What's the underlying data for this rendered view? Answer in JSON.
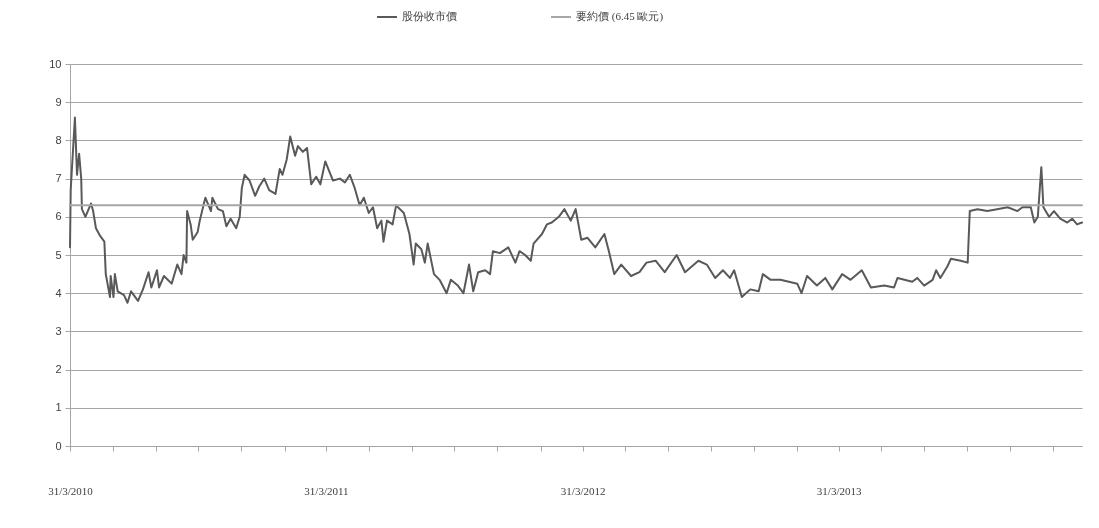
{
  "chart_data": {
    "type": "line",
    "x": [
      "2010-03-31",
      "2010-04-01",
      "2010-04-07",
      "2010-04-10",
      "2010-04-13",
      "2010-04-16",
      "2010-04-17",
      "2010-04-22",
      "2010-04-30",
      "2010-05-03",
      "2010-05-07",
      "2010-05-13",
      "2010-05-19",
      "2010-05-21",
      "2010-05-27",
      "2010-05-28",
      "2010-06-01",
      "2010-06-03",
      "2010-06-07",
      "2010-06-16",
      "2010-06-21",
      "2010-06-26",
      "2010-07-06",
      "2010-07-13",
      "2010-07-21",
      "2010-07-25",
      "2010-08-02",
      "2010-08-05",
      "2010-08-12",
      "2010-08-23",
      "2010-08-31",
      "2010-09-06",
      "2010-09-09",
      "2010-09-13",
      "2010-09-14",
      "2010-09-19",
      "2010-09-22",
      "2010-09-29",
      "2010-10-02",
      "2010-10-10",
      "2010-10-18",
      "2010-10-20",
      "2010-10-28",
      "2010-11-04",
      "2010-11-09",
      "2010-11-15",
      "2010-11-23",
      "2010-11-28",
      "2010-12-01",
      "2010-12-05",
      "2010-12-12",
      "2010-12-20",
      "2010-12-26",
      "2011-01-02",
      "2011-01-09",
      "2011-01-18",
      "2011-01-24",
      "2011-01-28",
      "2011-02-03",
      "2011-02-08",
      "2011-02-15",
      "2011-02-19",
      "2011-02-26",
      "2011-03-04",
      "2011-03-10",
      "2011-03-17",
      "2011-03-23",
      "2011-03-30",
      "2011-04-10",
      "2011-04-20",
      "2011-04-27",
      "2011-05-04",
      "2011-05-11",
      "2011-05-18",
      "2011-05-24",
      "2011-05-31",
      "2011-06-06",
      "2011-06-12",
      "2011-06-18",
      "2011-06-21",
      "2011-06-26",
      "2011-07-04",
      "2011-07-09",
      "2011-07-20",
      "2011-07-28",
      "2011-08-03",
      "2011-08-06",
      "2011-08-14",
      "2011-08-19",
      "2011-08-23",
      "2011-09-01",
      "2011-09-09",
      "2011-09-19",
      "2011-09-25",
      "2011-10-05",
      "2011-10-13",
      "2011-10-21",
      "2011-10-27",
      "2011-11-03",
      "2011-11-13",
      "2011-11-20",
      "2011-11-24",
      "2011-12-04",
      "2011-12-16",
      "2011-12-26",
      "2012-01-01",
      "2012-01-09",
      "2012-01-17",
      "2012-01-21",
      "2012-02-02",
      "2012-02-09",
      "2012-02-16",
      "2012-02-26",
      "2012-03-05",
      "2012-03-14",
      "2012-03-21",
      "2012-03-29",
      "2012-04-07",
      "2012-04-18",
      "2012-05-01",
      "2012-05-08",
      "2012-05-15",
      "2012-05-25",
      "2012-06-08",
      "2012-06-20",
      "2012-06-30",
      "2012-07-13",
      "2012-07-26",
      "2012-08-12",
      "2012-08-24",
      "2012-09-12",
      "2012-09-24",
      "2012-10-06",
      "2012-10-17",
      "2012-10-27",
      "2012-11-02",
      "2012-11-13",
      "2012-11-25",
      "2012-12-07",
      "2012-12-13",
      "2012-12-24",
      "2013-01-07",
      "2013-01-31",
      "2013-02-06",
      "2013-02-14",
      "2013-02-28",
      "2013-03-12",
      "2013-03-22",
      "2013-04-05",
      "2013-04-17",
      "2013-05-03",
      "2013-05-16",
      "2013-06-04",
      "2013-06-18",
      "2013-06-23",
      "2013-07-14",
      "2013-07-21",
      "2013-07-31",
      "2013-08-12",
      "2013-08-17",
      "2013-08-23",
      "2013-09-02",
      "2013-09-07",
      "2013-09-21",
      "2013-10-01",
      "2013-10-04",
      "2013-10-15",
      "2013-10-29",
      "2013-11-12",
      "2013-11-27",
      "2013-12-11",
      "2013-12-18",
      "2013-12-30",
      "2014-01-04",
      "2014-01-09",
      "2014-01-14",
      "2014-01-17",
      "2014-01-25",
      "2014-02-01",
      "2014-02-10",
      "2014-02-20",
      "2014-02-27",
      "2014-03-06",
      "2014-03-13"
    ],
    "series": [
      {
        "name": "股份收市價",
        "color": "#595959",
        "values": [
          5.2,
          6.7,
          8.6,
          7.1,
          7.65,
          7.0,
          6.2,
          6.0,
          6.35,
          6.15,
          5.7,
          5.5,
          5.35,
          4.5,
          3.9,
          4.45,
          3.9,
          4.5,
          4.05,
          3.95,
          3.75,
          4.05,
          3.8,
          4.1,
          4.55,
          4.15,
          4.6,
          4.15,
          4.45,
          4.25,
          4.75,
          4.5,
          5.0,
          4.8,
          6.15,
          5.8,
          5.4,
          5.6,
          5.9,
          6.5,
          6.15,
          6.5,
          6.2,
          6.15,
          5.75,
          5.95,
          5.7,
          6.0,
          6.75,
          7.1,
          6.95,
          6.55,
          6.8,
          7.0,
          6.7,
          6.6,
          7.25,
          7.1,
          7.5,
          8.1,
          7.6,
          7.85,
          7.7,
          7.8,
          6.85,
          7.05,
          6.85,
          7.45,
          6.95,
          7.0,
          6.9,
          7.1,
          6.75,
          6.3,
          6.5,
          6.1,
          6.25,
          5.7,
          5.9,
          5.35,
          5.9,
          5.8,
          6.3,
          6.1,
          5.55,
          4.75,
          5.3,
          5.15,
          4.8,
          5.3,
          4.5,
          4.35,
          4.0,
          4.35,
          4.2,
          4.0,
          4.75,
          4.05,
          4.55,
          4.6,
          4.5,
          5.1,
          5.05,
          5.2,
          4.8,
          5.1,
          5.0,
          4.85,
          5.3,
          5.55,
          5.8,
          5.85,
          6.0,
          6.2,
          5.9,
          6.2,
          5.4,
          5.45,
          5.2,
          5.55,
          5.05,
          4.5,
          4.75,
          4.45,
          4.55,
          4.8,
          4.85,
          4.55,
          5.0,
          4.55,
          4.85,
          4.75,
          4.4,
          4.6,
          4.4,
          4.6,
          3.9,
          4.1,
          4.05,
          4.5,
          4.35,
          4.35,
          4.25,
          4.0,
          4.45,
          4.2,
          4.4,
          4.1,
          4.5,
          4.35,
          4.6,
          4.15,
          4.2,
          4.15,
          4.4,
          4.3,
          4.4,
          4.2,
          4.35,
          4.6,
          4.4,
          4.7,
          4.9,
          4.85,
          4.8,
          6.15,
          6.2,
          6.15,
          6.2,
          6.25,
          6.15,
          6.25,
          6.25,
          5.85,
          6.0,
          7.3,
          6.25,
          6.0,
          6.15,
          5.95,
          5.85,
          5.95,
          5.8,
          5.85
        ]
      },
      {
        "name": "要約價 (6.45 歐元)",
        "color": "#a6a6a6",
        "type": "line",
        "x": [
          "2010-03-31",
          "2014-03-13"
        ],
        "values": [
          6.3,
          6.3
        ]
      }
    ],
    "xlim": [
      "2010-03-31",
      "2014-03-13"
    ],
    "xticks": [
      {
        "value": "2010-03-31",
        "label": "31/3/2010"
      },
      {
        "value": "2010-05-31",
        "label": null
      },
      {
        "value": "2010-07-31",
        "label": null
      },
      {
        "value": "2010-09-30",
        "label": null
      },
      {
        "value": "2010-11-30",
        "label": null
      },
      {
        "value": "2011-01-31",
        "label": null
      },
      {
        "value": "2011-03-31",
        "label": "31/3/2011"
      },
      {
        "value": "2011-05-31",
        "label": null
      },
      {
        "value": "2011-07-31",
        "label": null
      },
      {
        "value": "2011-09-30",
        "label": null
      },
      {
        "value": "2011-11-30",
        "label": null
      },
      {
        "value": "2012-01-31",
        "label": null
      },
      {
        "value": "2012-03-31",
        "label": "31/3/2012"
      },
      {
        "value": "2012-05-31",
        "label": null
      },
      {
        "value": "2012-07-31",
        "label": null
      },
      {
        "value": "2012-09-30",
        "label": null
      },
      {
        "value": "2012-11-30",
        "label": null
      },
      {
        "value": "2013-01-31",
        "label": null
      },
      {
        "value": "2013-03-31",
        "label": "31/3/2013"
      },
      {
        "value": "2013-05-31",
        "label": null
      },
      {
        "value": "2013-07-31",
        "label": null
      },
      {
        "value": "2013-09-30",
        "label": null
      },
      {
        "value": "2013-11-30",
        "label": null
      },
      {
        "value": "2014-01-31",
        "label": null
      }
    ],
    "ylim": [
      0,
      10
    ],
    "yticks": [
      0,
      1,
      2,
      3,
      4,
      5,
      6,
      7,
      8,
      9,
      10
    ],
    "grid": "y",
    "legend": "top",
    "marker": "none",
    "line_style": "solid"
  }
}
